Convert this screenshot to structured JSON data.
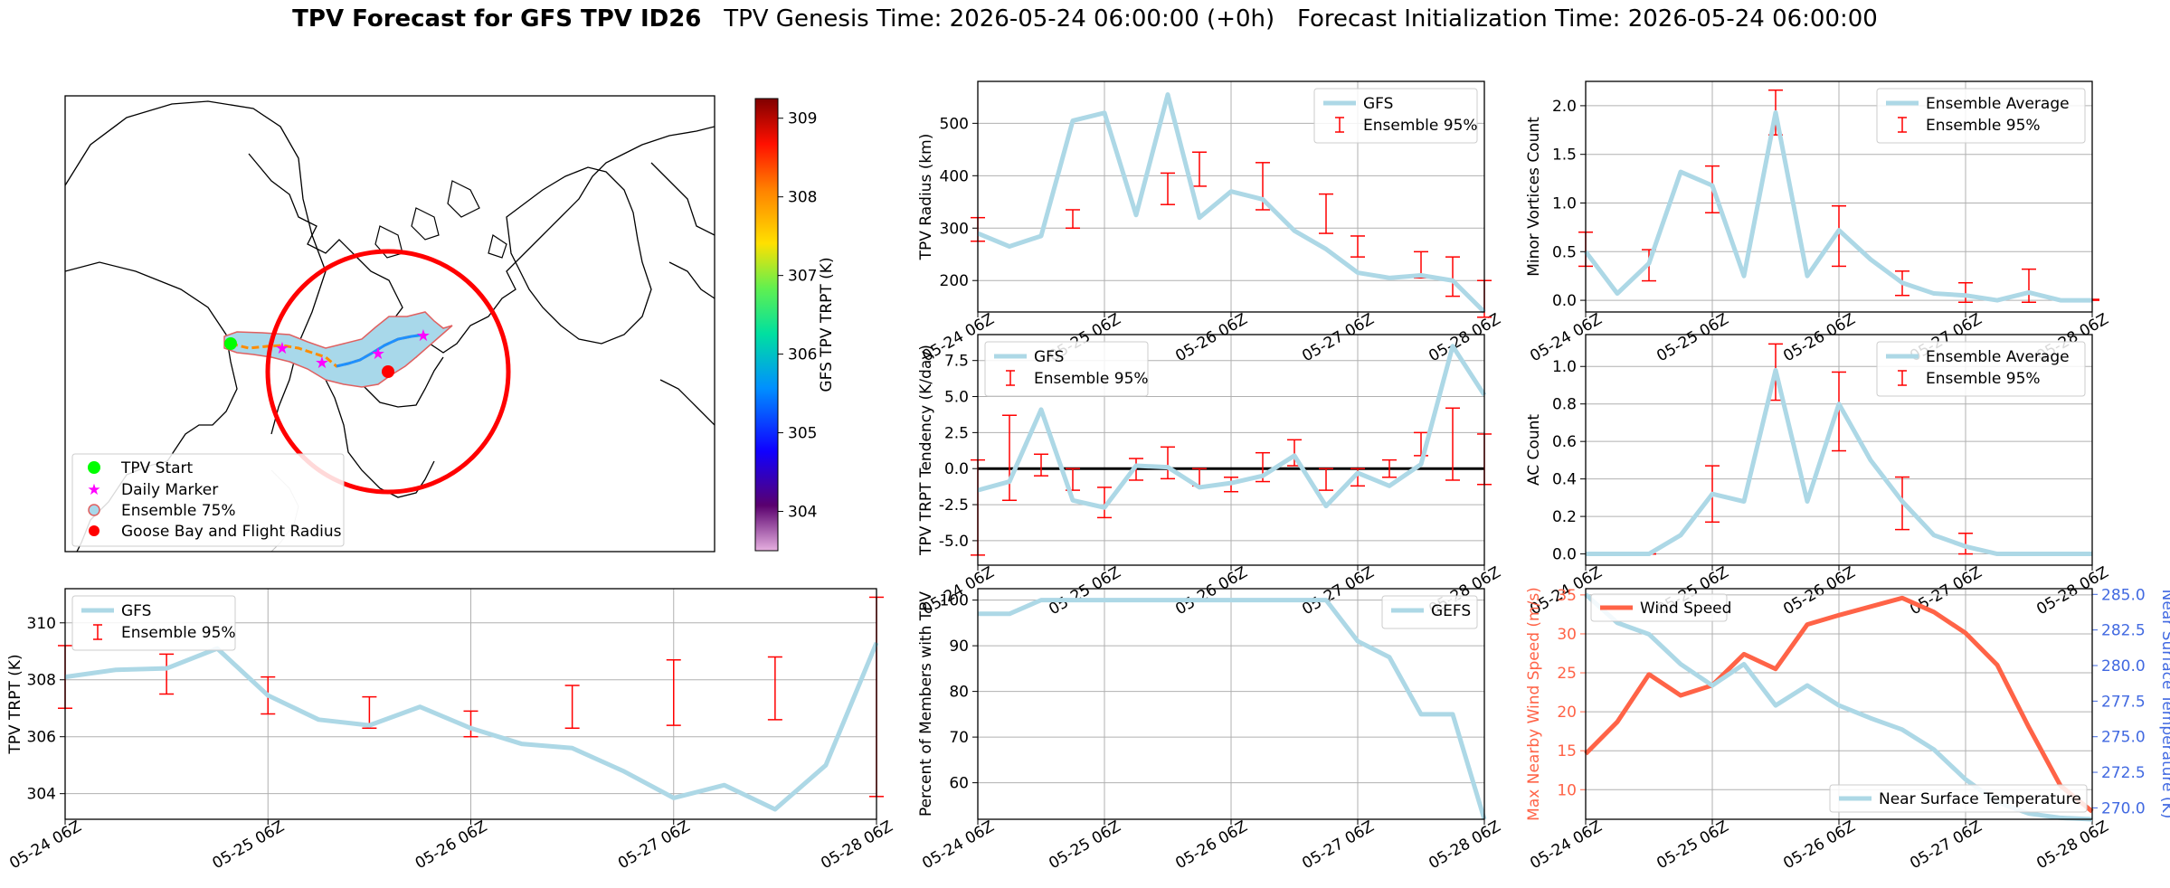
{
  "title": {
    "bold": "TPV Forecast for GFS TPV ID26",
    "genesis": "TPV Genesis Time: 2026-05-24 06:00:00 (+0h)",
    "init": "Forecast Initialization Time: 2026-05-24 06:00:00"
  },
  "colors": {
    "line": "#add8e6",
    "err": "#ff0000",
    "wind": "#ff6347",
    "temp_axis": "#4169e1"
  },
  "map": {
    "colorbar_label": "GFS TPV TRPT (K)",
    "colorbar_ticks": [
      304,
      305,
      306,
      307,
      308,
      309
    ],
    "colorbar_range": [
      303.5,
      309.25
    ],
    "legend": [
      "TPV Start",
      "Daily Marker",
      "Ensemble 75%",
      "Goose Bay and Flight Radius"
    ]
  },
  "chart_data": [
    {
      "id": "radius",
      "type": "line",
      "ylabel": "TPV Radius (km)",
      "yticks": [
        200,
        300,
        400,
        500
      ],
      "ylim": [
        140,
        580
      ],
      "xticks": [
        "05-24 06Z",
        "05-25 06Z",
        "05-26 06Z",
        "05-27 06Z",
        "05-28 06Z"
      ],
      "series": [
        {
          "name": "GFS",
          "values": [
            290,
            265,
            285,
            505,
            520,
            325,
            555,
            320,
            370,
            355,
            295,
            260,
            215,
            205,
            210,
            200,
            140
          ]
        }
      ],
      "errorbars": {
        "name": "Ensemble 95%",
        "x": [
          0,
          3,
          6,
          7,
          9,
          11,
          12,
          14,
          15,
          16
        ],
        "lo": [
          275,
          300,
          345,
          380,
          335,
          290,
          245,
          205,
          170,
          130
        ],
        "hi": [
          320,
          335,
          405,
          445,
          425,
          365,
          285,
          255,
          245,
          200
        ]
      },
      "legend": [
        "GFS",
        "Ensemble 95%"
      ]
    },
    {
      "id": "minor",
      "type": "line",
      "ylabel": "Minor Vortices Count",
      "yticks": [
        0.0,
        0.5,
        1.0,
        1.5,
        2.0
      ],
      "ylim": [
        -0.12,
        2.25
      ],
      "xticks": [
        "05-24 06Z",
        "05-25 06Z",
        "05-26 06Z",
        "05-27 06Z",
        "05-28 06Z"
      ],
      "series": [
        {
          "name": "Ensemble Average",
          "values": [
            0.5,
            0.07,
            0.38,
            1.32,
            1.18,
            0.25,
            1.93,
            0.25,
            0.72,
            0.42,
            0.18,
            0.07,
            0.05,
            0.0,
            0.08,
            0.0,
            0.0
          ]
        }
      ],
      "errorbars": {
        "name": "Ensemble 95%",
        "x": [
          0,
          2,
          4,
          6,
          8,
          10,
          12,
          14,
          16
        ],
        "lo": [
          0.35,
          0.2,
          0.9,
          1.7,
          0.35,
          0.05,
          -0.02,
          -0.02,
          0.0
        ],
        "hi": [
          0.7,
          0.52,
          1.38,
          2.16,
          0.97,
          0.3,
          0.18,
          0.32,
          0.01
        ]
      },
      "legend": [
        "Ensemble Average",
        "Ensemble 95%"
      ]
    },
    {
      "id": "tendency",
      "type": "line",
      "ylabel": "TPV TRPT Tendency (K/day)",
      "yticks": [
        -5.0,
        -2.5,
        0.0,
        2.5,
        5.0,
        7.5
      ],
      "ylim": [
        -6.7,
        9.3
      ],
      "xticks": [
        "05-24 06Z",
        "05-25 06Z",
        "05-26 06Z",
        "05-27 06Z",
        "05-28 06Z"
      ],
      "hline": 0,
      "series": [
        {
          "name": "GFS",
          "values": [
            -1.5,
            -0.9,
            4.1,
            -2.2,
            -2.7,
            0.2,
            0.1,
            -1.3,
            -1.0,
            -0.5,
            0.9,
            -2.6,
            -0.3,
            -1.2,
            0.3,
            8.5,
            5.1
          ]
        }
      ],
      "errorbars": {
        "name": "Ensemble 95%",
        "x": [
          0,
          1,
          2,
          3,
          4,
          5,
          6,
          7,
          8,
          9,
          10,
          11,
          12,
          13,
          14,
          15,
          16
        ],
        "lo": [
          -6.0,
          -2.2,
          -0.5,
          -1.5,
          -3.4,
          -0.8,
          -0.7,
          -1.2,
          -1.6,
          -0.9,
          0.2,
          -1.5,
          -1.2,
          -0.6,
          0.9,
          -0.8,
          -1.1
        ],
        "hi": [
          0.6,
          3.7,
          1.0,
          0.0,
          -1.3,
          0.7,
          1.5,
          0.0,
          -0.6,
          1.1,
          2.0,
          0.0,
          0.0,
          0.6,
          2.5,
          4.2,
          2.4
        ]
      },
      "legend": [
        "GFS",
        "Ensemble 95%"
      ]
    },
    {
      "id": "ac",
      "type": "line",
      "ylabel": "AC Count",
      "yticks": [
        0.0,
        0.2,
        0.4,
        0.6,
        0.8,
        1.0
      ],
      "ylim": [
        -0.06,
        1.17
      ],
      "xticks": [
        "05-24 06Z",
        "05-25 06Z",
        "05-26 06Z",
        "05-27 06Z",
        "05-28 06Z"
      ],
      "series": [
        {
          "name": "Ensemble Average",
          "values": [
            0.0,
            0.0,
            0.0,
            0.1,
            0.32,
            0.28,
            0.98,
            0.28,
            0.8,
            0.5,
            0.28,
            0.1,
            0.04,
            0.0,
            0.0,
            0.0,
            0.0
          ]
        }
      ],
      "errorbars": {
        "name": "Ensemble 95%",
        "x": [
          2,
          4,
          6,
          8,
          10,
          12,
          14
        ],
        "lo": [
          0.0,
          0.17,
          0.82,
          0.55,
          0.13,
          0.0,
          0.0
        ],
        "hi": [
          0.0,
          0.47,
          1.12,
          0.97,
          0.41,
          0.11,
          0.0
        ]
      },
      "legend": [
        "Ensemble Average",
        "Ensemble 95%"
      ]
    },
    {
      "id": "trpt",
      "type": "line",
      "ylabel": "TPV TRPT (K)",
      "yticks": [
        304,
        306,
        308,
        310
      ],
      "ylim": [
        303.1,
        311.2
      ],
      "xticks": [
        "05-24 06Z",
        "05-25 06Z",
        "05-26 06Z",
        "05-27 06Z",
        "05-28 06Z"
      ],
      "series": [
        {
          "name": "GFS",
          "values": [
            308.1,
            308.35,
            308.4,
            309.1,
            307.45,
            306.6,
            306.4,
            307.05,
            306.3,
            305.75,
            305.6,
            304.8,
            303.85,
            304.3,
            303.45,
            305.0,
            309.3
          ]
        }
      ],
      "errorbars": {
        "name": "Ensemble 95%",
        "x": [
          0,
          2,
          4,
          6,
          8,
          10,
          12,
          14,
          16
        ],
        "lo": [
          307.0,
          307.5,
          306.8,
          306.3,
          306.0,
          306.3,
          306.4,
          306.6,
          303.9
        ],
        "hi": [
          309.2,
          308.9,
          308.1,
          307.4,
          306.9,
          307.8,
          308.7,
          308.8,
          310.9
        ]
      },
      "legend": [
        "GFS",
        "Ensemble 95%"
      ]
    },
    {
      "id": "percent",
      "type": "line",
      "ylabel": "Percent of Members with TPV",
      "yticks": [
        60,
        70,
        80,
        90,
        100
      ],
      "ylim": [
        52,
        102.5
      ],
      "xticks": [
        "05-24 06Z",
        "05-25 06Z",
        "05-26 06Z",
        "05-27 06Z",
        "05-28 06Z"
      ],
      "series": [
        {
          "name": "GEFS",
          "values": [
            97,
            97,
            100,
            100,
            100,
            100,
            100,
            100,
            100,
            100,
            100,
            100,
            91,
            87.5,
            75,
            75,
            52
          ]
        }
      ],
      "legend": [
        "GEFS"
      ]
    },
    {
      "id": "wind_temp",
      "type": "line",
      "ylabel": "Max Nearby Wind Speed (m/s)",
      "ylabel2": "Near Surface Temperature (K)",
      "yticks": [
        10,
        15,
        20,
        25,
        30,
        35
      ],
      "yticks2": [
        270.0,
        272.5,
        275.0,
        277.5,
        280.0,
        282.5,
        285.0
      ],
      "ylim": [
        6.2,
        35.8
      ],
      "ylim2": [
        269.2,
        285.4
      ],
      "xticks": [
        "05-24 06Z",
        "05-25 06Z",
        "05-26 06Z",
        "05-27 06Z",
        "05-28 06Z"
      ],
      "series": [
        {
          "name": "Wind Speed",
          "values": [
            14.6,
            18.7,
            24.8,
            22.1,
            23.4,
            27.4,
            25.5,
            31.2,
            32.4,
            33.5,
            34.6,
            32.8,
            30.1,
            26.0,
            18.0,
            10.5,
            7.2
          ]
        },
        {
          "name": "Near Surface Temperature",
          "values": [
            285.0,
            283.0,
            282.2,
            280.1,
            278.6,
            280.1,
            277.2,
            278.6,
            277.2,
            276.3,
            275.5,
            274.1,
            272.0,
            270.4,
            269.6,
            269.3,
            269.2
          ]
        }
      ],
      "legend": [
        "Wind Speed",
        "Near Surface Temperature"
      ]
    }
  ]
}
